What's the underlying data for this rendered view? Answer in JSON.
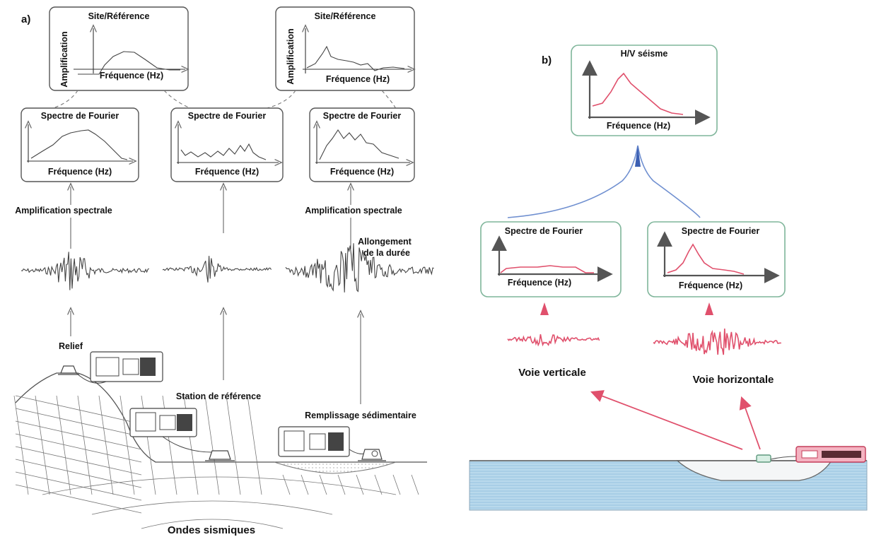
{
  "panel_a": {
    "tag": "a)",
    "site_ref_left": {
      "title": "Site/Référence",
      "ylabel": "Amplification",
      "xlabel": "Fréquence (Hz)"
    },
    "site_ref_right": {
      "title": "Site/Référence",
      "ylabel": "Amplification",
      "xlabel": "Fréquence (Hz)"
    },
    "fourier_left": {
      "title": "Spectre de Fourier",
      "xlabel": "Fréquence (Hz)"
    },
    "fourier_mid": {
      "title": "Spectre de Fourier",
      "xlabel": "Fréquence (Hz)"
    },
    "fourier_right": {
      "title": "Spectre de Fourier",
      "xlabel": "Fréquence (Hz)"
    },
    "amp_spectral_left": "Amplification spectrale",
    "amp_spectral_right": "Amplification spectrale",
    "duration_line1": "Allongement",
    "duration_line2": "de la durée",
    "relief": "Relief",
    "reference_station": "Station de référence",
    "sediment_fill": "Remplissage sédimentaire",
    "seismic_waves": "Ondes sismiques"
  },
  "panel_b": {
    "tag": "b)",
    "hv": {
      "title": "H/V séisme",
      "xlabel": "Fréquence (Hz)"
    },
    "fourier_vertical": {
      "title": "Spectre de Fourier",
      "xlabel": "Fréquence (Hz)"
    },
    "fourier_horizontal": {
      "title": "Spectre de Fourier",
      "xlabel": "Fréquence (Hz)"
    },
    "vertical_channel": "Voie verticale",
    "horizontal_channel": "Voie horizontale"
  },
  "colors": {
    "accent_red": "#e0506c",
    "box_green": "#7fb59a",
    "link_blue": "#6f8fd0",
    "ground_blue": "#b9d9ec"
  }
}
